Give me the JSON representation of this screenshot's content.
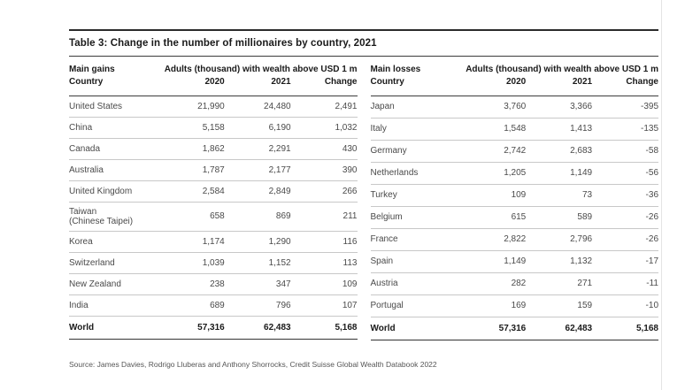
{
  "page": {
    "title": "Table 3: Change in the number of millionaires by country, 2021",
    "source": "Source: James Davies, Rodrigo Lluberas and Anthony Shorrocks, Credit Suisse Global Wealth Databook 2022"
  },
  "colors": {
    "rule_dark": "#333333",
    "rule_light": "#c8c8c8",
    "heading_text": "#1a1a1a",
    "body_text": "#4a4a4a",
    "page_edge_line": "#e4e4e4"
  },
  "tables": [
    {
      "group_label": "Main gains",
      "span_header": "Adults (thousand) with wealth above USD 1 m",
      "columns": [
        "Country",
        "2020",
        "2021",
        "Change"
      ],
      "rows": [
        {
          "country": "United States",
          "y2020": "21,990",
          "y2021": "24,480",
          "change": "2,491"
        },
        {
          "country": "China",
          "y2020": "5,158",
          "y2021": "6,190",
          "change": "1,032"
        },
        {
          "country": "Canada",
          "y2020": "1,862",
          "y2021": "2,291",
          "change": "430"
        },
        {
          "country": "Australia",
          "y2020": "1,787",
          "y2021": "2,177",
          "change": "390"
        },
        {
          "country": "United Kingdom",
          "y2020": "2,584",
          "y2021": "2,849",
          "change": "266"
        },
        {
          "country": "Taiwan\n(Chinese Taipei)",
          "y2020": "658",
          "y2021": "869",
          "change": "211"
        },
        {
          "country": "Korea",
          "y2020": "1,174",
          "y2021": "1,290",
          "change": "116"
        },
        {
          "country": "Switzerland",
          "y2020": "1,039",
          "y2021": "1,152",
          "change": "113"
        },
        {
          "country": "New Zealand",
          "y2020": "238",
          "y2021": "347",
          "change": "109"
        },
        {
          "country": "India",
          "y2020": "689",
          "y2021": "796",
          "change": "107"
        }
      ],
      "total": {
        "country": "World",
        "y2020": "57,316",
        "y2021": "62,483",
        "change": "5,168"
      }
    },
    {
      "group_label": "Main losses",
      "span_header": "Adults (thousand) with wealth above USD 1 m",
      "columns": [
        "Country",
        "2020",
        "2021",
        "Change"
      ],
      "rows": [
        {
          "country": "Japan",
          "y2020": "3,760",
          "y2021": "3,366",
          "change": "-395"
        },
        {
          "country": "Italy",
          "y2020": "1,548",
          "y2021": "1,413",
          "change": "-135"
        },
        {
          "country": "Germany",
          "y2020": "2,742",
          "y2021": "2,683",
          "change": "-58"
        },
        {
          "country": "Netherlands",
          "y2020": "1,205",
          "y2021": "1,149",
          "change": "-56"
        },
        {
          "country": "Turkey",
          "y2020": "109",
          "y2021": "73",
          "change": "-36"
        },
        {
          "country": "Belgium",
          "y2020": "615",
          "y2021": "589",
          "change": "-26"
        },
        {
          "country": "France",
          "y2020": "2,822",
          "y2021": "2,796",
          "change": "-26"
        },
        {
          "country": "Spain",
          "y2020": "1,149",
          "y2021": "1,132",
          "change": "-17"
        },
        {
          "country": "Austria",
          "y2020": "282",
          "y2021": "271",
          "change": "-11"
        },
        {
          "country": "Portugal",
          "y2020": "169",
          "y2021": "159",
          "change": "-10"
        }
      ],
      "total": {
        "country": "World",
        "y2020": "57,316",
        "y2021": "62,483",
        "change": "5,168"
      }
    }
  ]
}
